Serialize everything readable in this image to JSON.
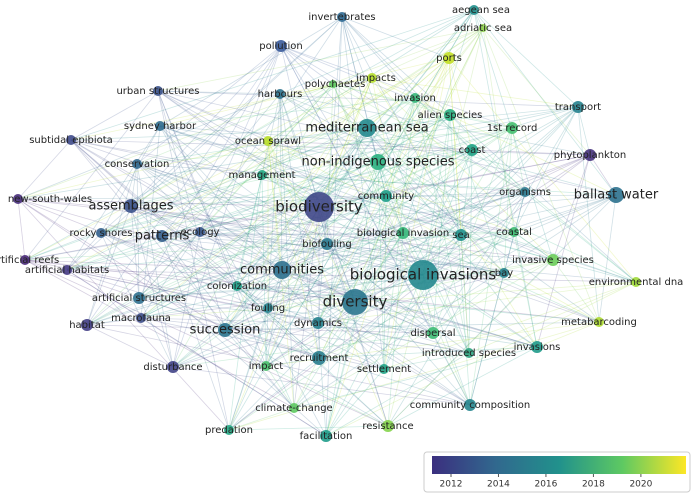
{
  "nodes": [
    {
      "label": "invertebrates",
      "color": "#2f6a93"
    },
    {
      "label": "aegean sea",
      "color": "#21908d"
    },
    {
      "label": "pollution",
      "color": "#3a5b9b"
    },
    {
      "label": "adriatic sea",
      "color": "#8fd14f"
    },
    {
      "label": "ports",
      "color": "#c2df23"
    },
    {
      "label": "impacts",
      "color": "#b5de2b"
    },
    {
      "label": "polychaetes",
      "color": "#5ec962"
    },
    {
      "label": "harbours",
      "color": "#2c728e"
    },
    {
      "label": "invasion",
      "color": "#35b779"
    },
    {
      "label": "urban structures",
      "color": "#3b528b"
    },
    {
      "label": "alien species",
      "color": "#29af7f"
    },
    {
      "label": "transport",
      "color": "#26828e"
    },
    {
      "label": "sydney harbor",
      "color": "#2f6b8e"
    },
    {
      "label": "mediterranean sea",
      "color": "#23898e"
    },
    {
      "label": "1st record",
      "color": "#44bf70"
    },
    {
      "label": "subtidal epibiota",
      "color": "#3e4a89"
    },
    {
      "label": "coast",
      "color": "#20a386"
    },
    {
      "label": "phytoplankton",
      "color": "#46327e"
    },
    {
      "label": "conservation",
      "color": "#31688e"
    },
    {
      "label": "ocean sprawl",
      "color": "#b8de29"
    },
    {
      "label": "non-indigenous species",
      "color": "#2ab07f"
    },
    {
      "label": "management",
      "color": "#22a884"
    },
    {
      "label": "organisms",
      "color": "#2a788e"
    },
    {
      "label": "ballast water",
      "color": "#2c718e"
    },
    {
      "label": "community",
      "color": "#1f9e89"
    },
    {
      "label": "new-south-wales",
      "color": "#472d7b"
    },
    {
      "label": "assemblages",
      "color": "#3b528b"
    },
    {
      "label": "biodiversity",
      "color": "#3f4788"
    },
    {
      "label": "rocky shores",
      "color": "#34608d"
    },
    {
      "label": "patterns",
      "color": "#355f8d"
    },
    {
      "label": "ecology",
      "color": "#39568c"
    },
    {
      "label": "biological invasion",
      "color": "#35b779"
    },
    {
      "label": "sea",
      "color": "#21918c"
    },
    {
      "label": "coastal",
      "color": "#3fbc73"
    },
    {
      "label": "biofouling",
      "color": "#2a788e"
    },
    {
      "label": "artificial reefs",
      "color": "#482878"
    },
    {
      "label": "artificial habitats",
      "color": "#443983"
    },
    {
      "label": "communities",
      "color": "#2d708e"
    },
    {
      "label": "biological invasions",
      "color": "#23888e"
    },
    {
      "label": "invasive species",
      "color": "#6ccd5a"
    },
    {
      "label": "environmental dna",
      "color": "#a0da39"
    },
    {
      "label": "diversity",
      "color": "#2a768e"
    },
    {
      "label": "artificial structures",
      "color": "#2e6f8e"
    },
    {
      "label": "colonization",
      "color": "#1fa088"
    },
    {
      "label": "macrofauna",
      "color": "#3d4e8a"
    },
    {
      "label": "fouling",
      "color": "#25838e"
    },
    {
      "label": "habitat",
      "color": "#433e85"
    },
    {
      "label": "succession",
      "color": "#2b748e"
    },
    {
      "label": "dynamics",
      "color": "#26818e"
    },
    {
      "label": "metabarcoding",
      "color": "#addc30"
    },
    {
      "label": "dispersal",
      "color": "#3dbc74"
    },
    {
      "label": "invasions",
      "color": "#1f9a8a"
    },
    {
      "label": "introduced species",
      "color": "#2ea37f"
    },
    {
      "label": "recruitment",
      "color": "#287d8e"
    },
    {
      "label": "disturbance",
      "color": "#414487"
    },
    {
      "label": "impact",
      "color": "#4ac16d"
    },
    {
      "label": "settlement",
      "color": "#20a486"
    },
    {
      "label": "climate-change",
      "color": "#5ec962"
    },
    {
      "label": "community composition",
      "color": "#25858e"
    },
    {
      "label": "predation",
      "color": "#22a884"
    },
    {
      "label": "facilitation",
      "color": "#1e9c89"
    },
    {
      "label": "resistance",
      "color": "#84d44b"
    },
    {
      "label": "bay",
      "color": "#26828e"
    }
  ],
  "legend": {
    "range": [
      2011.2,
      2021.9
    ],
    "ticks": [
      2012,
      2014,
      2016,
      2018,
      2020
    ]
  }
}
